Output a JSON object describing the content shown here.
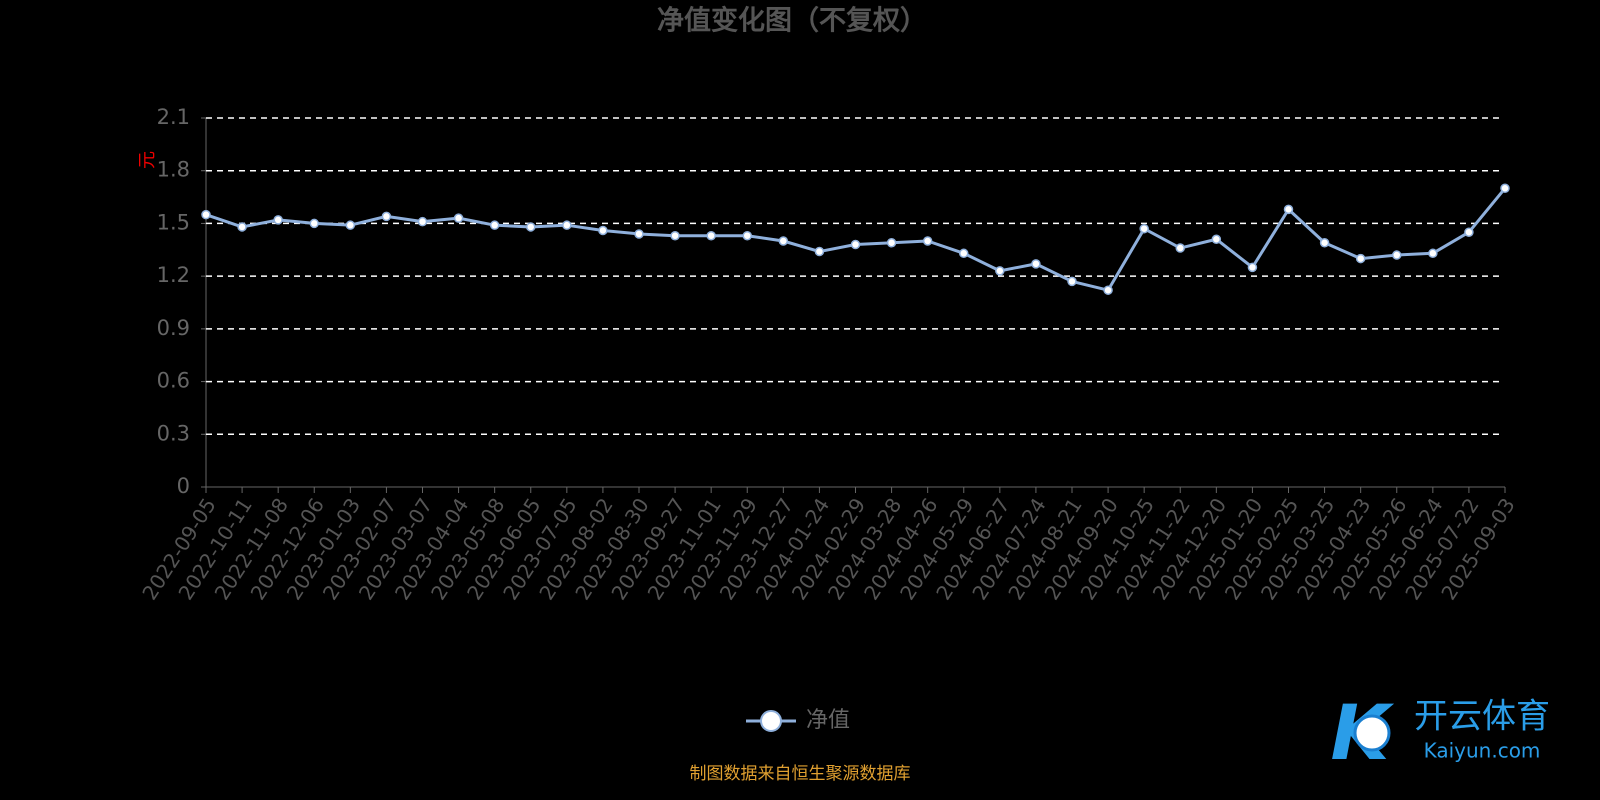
{
  "chart_data": {
    "type": "line",
    "title": "净值变化图（不复权）",
    "y_label": "元",
    "categories": [
      "2022-09-05",
      "2022-10-11",
      "2022-11-08",
      "2022-12-06",
      "2023-01-03",
      "2023-02-07",
      "2023-03-07",
      "2023-04-04",
      "2023-05-08",
      "2023-06-05",
      "2023-07-05",
      "2023-08-02",
      "2023-08-30",
      "2023-09-27",
      "2023-11-01",
      "2023-11-29",
      "2023-12-27",
      "2024-01-24",
      "2024-02-29",
      "2024-03-28",
      "2024-04-26",
      "2024-05-29",
      "2024-06-27",
      "2024-07-24",
      "2024-08-21",
      "2024-09-20",
      "2024-10-25",
      "2024-11-22",
      "2024-12-20",
      "2025-01-20",
      "2025-02-25",
      "2025-03-25",
      "2025-04-23",
      "2025-05-26",
      "2025-06-24",
      "2025-07-22",
      "2025-09-03"
    ],
    "series": [
      {
        "name": "净值",
        "color": "#8fb0dc",
        "values": [
          1.55,
          1.48,
          1.52,
          1.5,
          1.49,
          1.54,
          1.51,
          1.53,
          1.49,
          1.48,
          1.49,
          1.46,
          1.44,
          1.43,
          1.43,
          1.43,
          1.4,
          1.34,
          1.38,
          1.39,
          1.4,
          1.33,
          1.23,
          1.27,
          1.17,
          1.12,
          1.47,
          1.36,
          1.41,
          1.25,
          1.58,
          1.39,
          1.3,
          1.32,
          1.33,
          1.45,
          1.7
        ]
      }
    ],
    "ylim": [
      0,
      2.1
    ],
    "yticks": [
      0,
      0.3,
      0.6,
      0.9,
      1.2,
      1.5,
      1.8,
      2.1
    ],
    "grid": true,
    "legend": "bottom",
    "source": "制图数据来自恒生聚源数据库",
    "watermark": {
      "name": "开云体育",
      "site": "Kaiyun.com"
    }
  }
}
